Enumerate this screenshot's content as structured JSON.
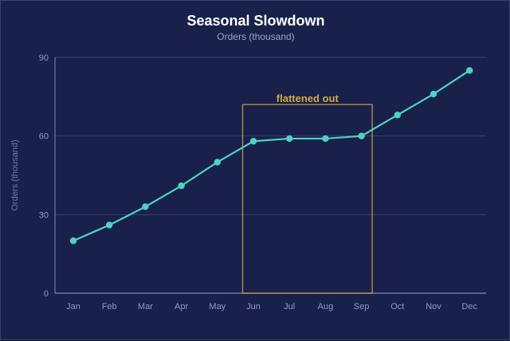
{
  "chart_data": {
    "type": "line",
    "title": "Seasonal Slowdown",
    "subtitle": "Orders (thousand)",
    "xlabel": "",
    "ylabel": "Orders (thousand)",
    "categories": [
      "Jan",
      "Feb",
      "Mar",
      "Apr",
      "May",
      "Jun",
      "Jul",
      "Aug",
      "Sep",
      "Oct",
      "Nov",
      "Dec"
    ],
    "series": [
      {
        "values": [
          20,
          26,
          33,
          41,
          50,
          58,
          59,
          59,
          60,
          68,
          76,
          85
        ]
      }
    ],
    "ylim": [
      0,
      90
    ],
    "yticks": [
      0,
      30,
      60,
      90
    ],
    "grid": true,
    "legend": "none",
    "annotation": {
      "label": "flattened out",
      "x_start": "Jun",
      "x_end": "Sep",
      "y_top": 72
    }
  },
  "colors": {
    "background": "#19214a",
    "line": "#4fd1c5",
    "grid": "#3a4270",
    "axis": "#7f89b5",
    "tick_text": "#8f99c0",
    "annotation": "#d4a843"
  }
}
